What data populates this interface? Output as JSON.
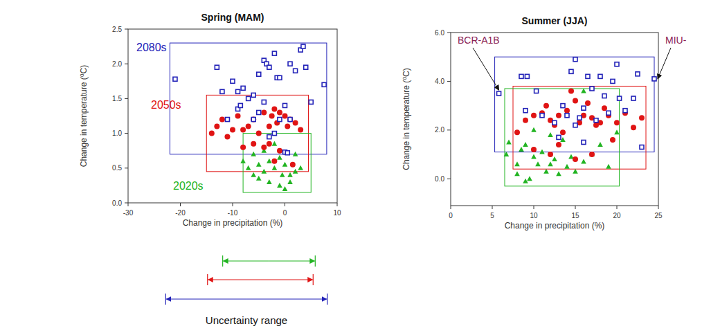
{
  "chart_data": [
    {
      "type": "scatter",
      "title": "Spring (MAM)",
      "x_label": "Change in precipitation (%)",
      "y_label": "Change in temperature (⁰C)",
      "xlim": [
        -30,
        10
      ],
      "ylim": [
        0,
        2.5
      ],
      "xticks": [
        -30,
        -20,
        -10,
        0,
        10
      ],
      "yticks": [
        {
          "value": 0,
          "label": "0.0"
        },
        {
          "value": 0.5,
          "label": "0.5"
        },
        {
          "value": 1,
          "label": "1.0"
        },
        {
          "value": 1.5,
          "label": "1.5"
        },
        {
          "value": 2,
          "label": "2.0"
        },
        {
          "value": 2.5,
          "label": "2.5"
        }
      ],
      "uncertainty_label": "Uncertainty range",
      "series": [
        {
          "name": "2080s",
          "color": "#2222b8",
          "marker": "square",
          "x": [
            -21,
            -13,
            -12,
            -10,
            -9,
            -8,
            -7,
            -6,
            -5,
            -4,
            -3.5,
            -3,
            -2,
            -1.5,
            -1,
            1,
            2,
            3,
            3.5,
            4,
            5,
            7.5,
            -9,
            -8.5,
            -6,
            -5,
            -3,
            -2,
            0,
            0.5,
            -11,
            0,
            1,
            -4,
            -1
          ],
          "values": [
            1.78,
            1.95,
            1.6,
            1.75,
            1.6,
            1.65,
            1.5,
            1.55,
            1.85,
            2.05,
            2.0,
            1.95,
            2.15,
            1.8,
            1.8,
            2.0,
            1.9,
            2.2,
            2.25,
            1.95,
            1.45,
            1.7,
            1.35,
            1.4,
            1.2,
            1.3,
            0.95,
            1.0,
            0.73,
            0.72,
            1.2,
            1.4,
            1.2,
            1.45,
            1.2
          ],
          "box": {
            "x": [
              -22,
              8
            ],
            "y": [
              0.7,
              2.3
            ]
          },
          "uncertainty_range": [
            -22.8,
            8.1
          ]
        },
        {
          "name": "2050s",
          "color": "#e01414",
          "marker": "circle",
          "x": [
            -14,
            -13,
            -12,
            -11,
            -10,
            -9,
            -8,
            -7,
            -6,
            -5,
            -4,
            -3,
            -2.5,
            -2,
            -1.5,
            -1,
            0,
            0.5,
            1,
            2,
            -3,
            -4,
            -1,
            -6,
            -2,
            1.5,
            3,
            -8
          ],
          "values": [
            1.0,
            1.1,
            1.2,
            0.95,
            1.05,
            1.25,
            1.05,
            1.1,
            1.2,
            1.0,
            1.3,
            1.1,
            1.25,
            1.35,
            1.15,
            1.3,
            1.25,
            1.1,
            1.2,
            1.15,
            0.85,
            0.8,
            0.75,
            0.85,
            0.6,
            0.55,
            1.05,
            0.8
          ],
          "box": {
            "x": [
              -15,
              4.5
            ],
            "y": [
              0.45,
              1.55
            ]
          },
          "uncertainty_range": [
            -14.8,
            5.4
          ]
        },
        {
          "name": "2020s",
          "color": "#22b422",
          "marker": "triangle",
          "x": [
            -8,
            -7,
            -6,
            -5,
            -4,
            -3,
            -2,
            -1,
            0,
            1,
            2,
            -5,
            -3,
            -1,
            0,
            1,
            3,
            -2,
            -4,
            2,
            -0.5,
            -6
          ],
          "values": [
            0.6,
            0.5,
            0.7,
            0.55,
            0.75,
            0.6,
            0.5,
            0.65,
            0.55,
            0.4,
            0.45,
            0.35,
            0.3,
            0.25,
            0.2,
            0.3,
            0.5,
            0.85,
            0.45,
            0.7,
            0.4,
            0.4
          ],
          "box": {
            "x": [
              -8,
              5
            ],
            "y": [
              0.15,
              1.0
            ]
          },
          "uncertainty_range": [
            -11.9,
            5.8
          ]
        }
      ]
    },
    {
      "type": "scatter",
      "title": "Summer (JJA)",
      "x_label": "Change in precipitation (%)",
      "y_label": "Change in temperature (⁰C)",
      "xlim": [
        0,
        25
      ],
      "ylim": [
        -1.1,
        6
      ],
      "xticks": [
        0,
        5,
        10,
        15,
        20,
        25
      ],
      "yticks": [
        {
          "value": 0,
          "label": "0.0"
        },
        {
          "value": 2,
          "label": "2.0"
        },
        {
          "value": 4,
          "label": "4.0"
        },
        {
          "value": 6,
          "label": "6.0"
        }
      ],
      "annotations": [
        {
          "text": "BCR-A1B",
          "x": 5.8,
          "y": 3.5
        },
        {
          "text": "MIU-",
          "x": 24.5,
          "y": 4.1
        }
      ],
      "series": [
        {
          "color": "#2222b8",
          "marker": "square",
          "x": [
            5.8,
            8.5,
            9.2,
            10.3,
            12.5,
            13,
            14,
            14.5,
            15,
            15.5,
            16,
            16.5,
            17,
            17.5,
            18,
            18.5,
            19.5,
            20,
            20.3,
            21,
            22,
            22.5,
            23,
            24.5,
            13.5,
            15,
            9,
            11,
            19,
            16
          ],
          "values": [
            3.5,
            4.2,
            4.2,
            3.6,
            2.3,
            1.7,
            2.6,
            4.4,
            4.9,
            2.5,
            2.9,
            4.2,
            3.7,
            2.4,
            4.2,
            3.4,
            4.0,
            4.7,
            3.3,
            2.8,
            3.3,
            4.3,
            1.3,
            4.1,
            3.0,
            2.2,
            2.8,
            2.6,
            2.7,
            1.5
          ],
          "box": {
            "x": [
              5.3,
              24.5
            ],
            "y": [
              1.1,
              5.0
            ]
          }
        },
        {
          "color": "#e01414",
          "marker": "circle",
          "x": [
            8,
            9,
            10,
            11,
            11.5,
            12,
            12.5,
            13,
            13.5,
            14,
            14.5,
            15,
            15.5,
            16,
            16.5,
            17,
            17.5,
            18,
            18.5,
            19,
            19.5,
            20,
            21,
            22,
            23,
            10,
            12,
            15,
            17,
            13
          ],
          "values": [
            1.9,
            2.4,
            2.6,
            2.7,
            3.0,
            2.4,
            2.2,
            2.6,
            1.9,
            2.8,
            3.6,
            3.2,
            2.3,
            2.6,
            3.1,
            2.5,
            2.2,
            2.3,
            2.9,
            2.6,
            1.6,
            2.3,
            2.7,
            2.1,
            2.5,
            1.2,
            1.0,
            0.8,
            1.0,
            1.4
          ],
          "box": {
            "x": [
              7.5,
              23.5
            ],
            "y": [
              0.4,
              3.8
            ]
          }
        },
        {
          "color": "#22b422",
          "marker": "triangle",
          "x": [
            7,
            8,
            8.5,
            9,
            9.5,
            10,
            10.5,
            11,
            11.5,
            12,
            12.5,
            13,
            13.5,
            14,
            14.5,
            15,
            16,
            17,
            18,
            19,
            20,
            8,
            9,
            10,
            12,
            16,
            6.7
          ],
          "values": [
            1.5,
            0.6,
            1.2,
            1.4,
            0.0,
            0.9,
            0.6,
            1.1,
            0.3,
            0.6,
            0.8,
            0.2,
            1.6,
            0.5,
            0.9,
            0.3,
            0.7,
            1.0,
            1.4,
            0.5,
            1.9,
            0.2,
            -0.1,
            2.0,
            1.8,
            3.6,
            1.0
          ],
          "box": {
            "x": [
              6.5,
              20.3
            ],
            "y": [
              -0.3,
              3.7
            ]
          }
        }
      ]
    }
  ]
}
